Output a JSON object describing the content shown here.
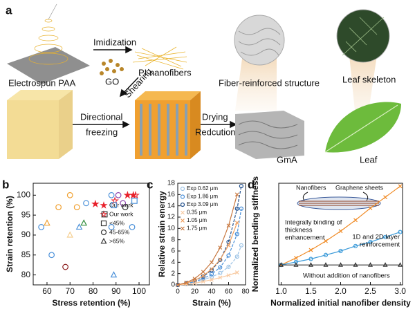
{
  "panel_a": {
    "label": "a",
    "imidization": "Imidization",
    "go": "GO",
    "shearing": "Shearing",
    "pi_nanofibers": "PI nanofibers",
    "electrospun": "Electrospun PAA",
    "fiber_reinforced": "Fiber-reinforced structure",
    "leaf_skeleton": "Leaf skeleton",
    "directional_freezing": [
      "Directional",
      "freezing"
    ],
    "drying_reduction": [
      "Drying",
      "Redcution"
    ],
    "gma": "GmA",
    "leaf": "Leaf"
  },
  "chart_data": [
    {
      "type": "scatter",
      "panel_label": "b",
      "xlabel": "Stress retention (%)",
      "ylabel": "Strain retention (%)",
      "xlim": [
        54,
        104.5
      ],
      "ylim": [
        77.5,
        103
      ],
      "xticks": [
        60,
        70,
        80,
        90,
        100
      ],
      "yticks": [
        80,
        85,
        90,
        95,
        100
      ],
      "series": [
        {
          "name": "Our work",
          "marker": "star",
          "color": "#e8202a",
          "x": [
            81,
            95,
            97.5
          ],
          "values": [
            97.8,
            100,
            100
          ]
        },
        {
          "name": "Our work",
          "marker": "star-open",
          "color": "#e8202a",
          "x": [
            89.5,
            98.5
          ],
          "values": [
            98.6,
            100
          ]
        },
        {
          "name": "<45%",
          "marker": "square",
          "color": "#333333",
          "x": [
            85,
            89,
            98
          ],
          "values": [
            95.2,
            97.5,
            98.6
          ],
          "colors": [
            "#333333",
            "#4a90d9",
            "#4a90d9"
          ]
        },
        {
          "name": "45-65%",
          "marker": "circle",
          "color": "#333333",
          "x": [
            57.5,
            62,
            65,
            70,
            73,
            77,
            88,
            88,
            91,
            93,
            94,
            97,
            68
          ],
          "values": [
            92,
            85,
            97,
            100,
            97,
            98,
            92,
            100,
            100,
            98,
            97,
            92,
            82
          ],
          "colors": [
            "#4a90d9",
            "#4a90d9",
            "#f0a030",
            "#f0a030",
            "#f0a030",
            "#4a90d9",
            "#4a90d9",
            "#4a90d9",
            "#8e44ad",
            "#8e44ad",
            "#333333",
            "#4a90d9",
            "#8b1a1a"
          ]
        },
        {
          "name": ">65%",
          "marker": "triangle",
          "color": "#333333",
          "x": [
            60,
            70,
            74,
            76,
            89
          ],
          "values": [
            93,
            90,
            92,
            93,
            80
          ],
          "colors": [
            "#f0a030",
            "#f5cf90",
            "#4a90d9",
            "#2e8b3a",
            "#4a90d9"
          ]
        }
      ]
    },
    {
      "type": "line",
      "panel_label": "c",
      "xlabel": "Strain (%)",
      "ylabel": "Relative strain energy",
      "xlim": [
        0,
        80
      ],
      "ylim": [
        0,
        18
      ],
      "xticks": [
        0,
        20,
        40,
        60,
        80
      ],
      "yticks": [
        0,
        2,
        4,
        6,
        8,
        10,
        12,
        14,
        16,
        18
      ],
      "series": [
        {
          "name": "Exp 0.62 μm",
          "color": "#9cc3e6",
          "marker": "circle",
          "dash": true,
          "x": [
            0,
            10,
            20,
            30,
            40,
            50,
            60,
            70,
            75
          ],
          "values": [
            0,
            0.2,
            0.5,
            0.9,
            1.4,
            2.1,
            3.2,
            5.0,
            7.0
          ]
        },
        {
          "name": "Exp 1.86 μm",
          "color": "#4a90d9",
          "marker": "circle",
          "dash": true,
          "x": [
            0,
            10,
            20,
            30,
            40,
            50,
            60,
            70,
            75
          ],
          "values": [
            0,
            0.2,
            0.6,
            1.1,
            1.9,
            3.1,
            5.2,
            9.0,
            13.5
          ]
        },
        {
          "name": "Exp 3.09 μm",
          "color": "#1f4e8c",
          "marker": "circle",
          "dash": true,
          "x": [
            0,
            10,
            20,
            30,
            40,
            50,
            60,
            70,
            75
          ],
          "values": [
            0,
            0.3,
            0.8,
            1.5,
            2.6,
            4.4,
            7.6,
            13.5,
            17.5
          ]
        },
        {
          "name": "0.35 μm",
          "color": "#f8c9a0",
          "marker": "x",
          "dash": false,
          "x": [
            0,
            10,
            20,
            30,
            40,
            50,
            60,
            70
          ],
          "values": [
            0,
            0.1,
            0.3,
            0.6,
            0.9,
            1.3,
            1.7,
            2.2
          ]
        },
        {
          "name": "1.05 μm",
          "color": "#f0a060",
          "marker": "x",
          "dash": false,
          "x": [
            0,
            10,
            20,
            30,
            40,
            50,
            60,
            70
          ],
          "values": [
            0,
            0.3,
            0.8,
            1.6,
            2.8,
            4.5,
            7.0,
            11.0
          ]
        },
        {
          "name": "1.75 μm",
          "color": "#c87840",
          "marker": "x",
          "dash": false,
          "x": [
            0,
            10,
            20,
            30,
            40,
            50,
            60,
            70
          ],
          "values": [
            0,
            0.4,
            1.1,
            2.3,
            4.0,
            6.6,
            10.5,
            16.0
          ]
        }
      ]
    },
    {
      "type": "line",
      "panel_label": "d",
      "xlabel": "Normalized initial nanofiber density",
      "ylabel": "Normalized bending stiffness",
      "xlim": [
        0.96,
        3.04
      ],
      "ylim": [
        -1,
        9.2
      ],
      "xticks": [
        {
          "value": 1,
          "label": "1.0"
        },
        {
          "value": 1.5,
          "label": "1.5"
        },
        {
          "value": 2,
          "label": "2.0"
        },
        {
          "value": 2.5,
          "label": "2.5"
        },
        {
          "value": 3,
          "label": "3.0"
        }
      ],
      "inset_labels": [
        "Nanofibers",
        "Graphene sheets"
      ],
      "x": [
        1,
        1.25,
        1.5,
        1.75,
        2,
        2.25,
        2.5,
        2.75,
        3
      ],
      "series": [
        {
          "name_lines": [
            "Integrally binding of",
            "thickness",
            "enhancement"
          ],
          "color": "#f08a24",
          "marker": "x",
          "values": [
            1,
            1.7,
            2.5,
            3.4,
            4.4,
            5.5,
            6.7,
            7.8,
            8.9
          ]
        },
        {
          "name_lines": [
            "1D and 2D layer",
            "reinforcement"
          ],
          "color": "#3a9ad9",
          "marker": "circle",
          "values": [
            1,
            1.3,
            1.6,
            2.0,
            2.4,
            2.9,
            3.3,
            3.8,
            4.3
          ]
        },
        {
          "name_lines": [
            "Without addition of nanofibers"
          ],
          "color": "#333333",
          "marker": "triangle",
          "values": [
            1,
            1,
            1,
            1,
            1,
            1,
            1,
            1,
            1
          ]
        }
      ]
    }
  ]
}
